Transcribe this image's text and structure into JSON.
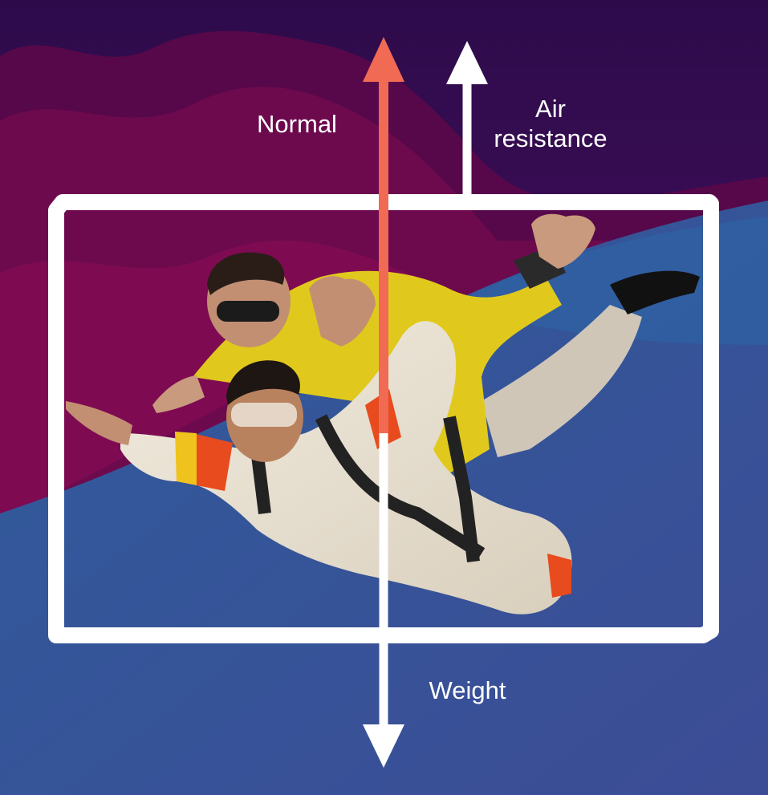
{
  "diagram": {
    "subject": "Tandem skydivers in free fall",
    "forces": {
      "normal": {
        "label": "Normal",
        "color": "#f06a54",
        "direction": "up"
      },
      "air_resistance": {
        "label": "Air\nresistance",
        "color": "#ffffff",
        "direction": "up"
      },
      "weight": {
        "label": "Weight",
        "color": "#ffffff",
        "direction": "down"
      }
    },
    "colors": {
      "sky_top": "#330c50",
      "sky_bottom": "#3f4f9e",
      "hills_magenta": "#7a0a4e",
      "frame": "#ffffff"
    }
  }
}
